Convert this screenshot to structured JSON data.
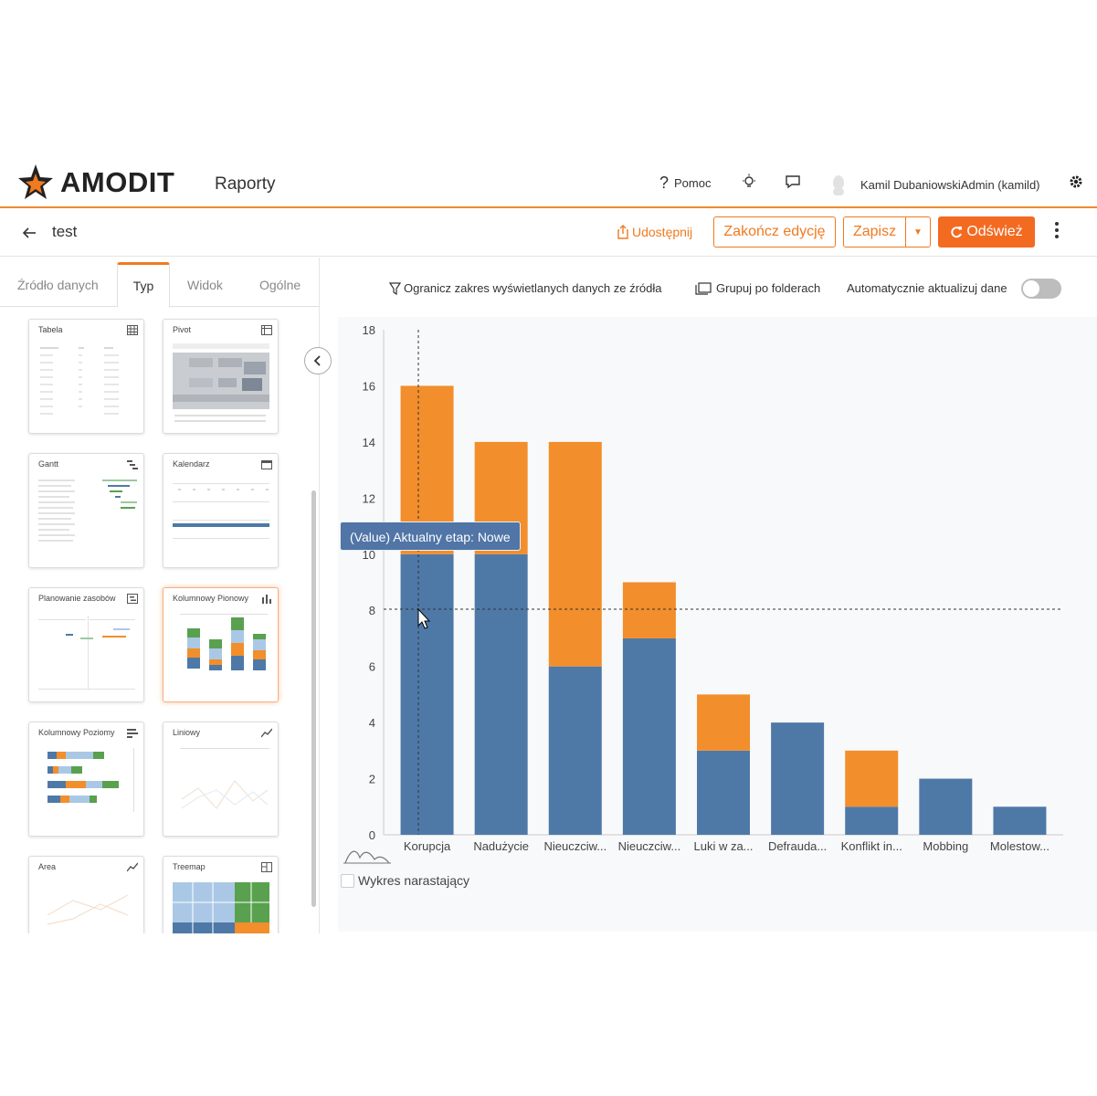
{
  "header": {
    "logo_text": "AMODIT",
    "app_name": "Raporty",
    "help_label": "Pomoc",
    "user_name": "Kamil DubaniowskiAdmin (kamild)"
  },
  "toolbar": {
    "report_name": "test",
    "share_label": "Udostępnij",
    "finish_label": "Zakończ edycję",
    "save_label": "Zapisz",
    "refresh_label": "Odśwież"
  },
  "tabs": [
    {
      "label": "Źródło danych",
      "active": false
    },
    {
      "label": "Typ",
      "active": true
    },
    {
      "label": "Widok",
      "active": false
    },
    {
      "label": "Ogólne",
      "active": false
    }
  ],
  "chart_types": [
    {
      "label": "Tabela",
      "icon": "table-icon"
    },
    {
      "label": "Pivot",
      "icon": "pivot-icon"
    },
    {
      "label": "Gantt",
      "icon": "gantt-icon"
    },
    {
      "label": "Kalendarz",
      "icon": "calendar-icon"
    },
    {
      "label": "Planowanie zasobów",
      "icon": "resource-planning-icon"
    },
    {
      "label": "Kolumnowy Pionowy",
      "icon": "vertical-bar-icon",
      "selected": true
    },
    {
      "label": "Kolumnowy Poziomy",
      "icon": "horizontal-bar-icon"
    },
    {
      "label": "Liniowy",
      "icon": "line-chart-icon"
    },
    {
      "label": "Area",
      "icon": "area-chart-icon"
    },
    {
      "label": "Treemap",
      "icon": "treemap-icon"
    }
  ],
  "options": {
    "limit_label": "Ogranicz zakres wyświetlanych danych ze źródła",
    "group_label": "Grupuj po folderach",
    "auto_update_label": "Automatycznie aktualizuj dane",
    "auto_update": false
  },
  "cumulative_label": "Wykres narastający",
  "tooltip_text": "(Value) Aktualny etap: Nowe",
  "colors": {
    "accent": "#f07a20",
    "series_blue": "#4e79a7",
    "series_orange": "#f28e2b"
  },
  "chart_data": {
    "type": "bar",
    "stacked": true,
    "categories": [
      "Korupcja",
      "Nadużycie",
      "Nieuczciw...",
      "Nieuczciw...",
      "Luki w za...",
      "Defrauda...",
      "Konflikt in...",
      "Mobbing",
      "Molestow..."
    ],
    "series": [
      {
        "values": [
          10,
          10,
          6,
          7,
          3,
          4,
          1,
          2,
          1
        ],
        "color": "#4e79a7"
      },
      {
        "values": [
          6,
          4,
          8,
          2,
          2,
          0,
          2,
          0,
          0
        ],
        "color": "#f28e2b"
      }
    ],
    "ylim": [
      0,
      18
    ],
    "yticks": [
      0,
      2,
      4,
      6,
      8,
      10,
      12,
      14,
      16,
      18
    ],
    "grid": false
  }
}
